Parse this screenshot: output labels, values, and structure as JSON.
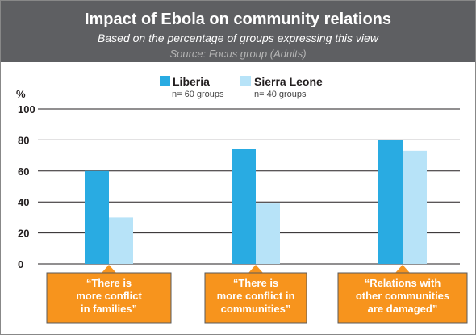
{
  "header": {
    "title": "Impact of Ebola on community relations",
    "subtitle": "Based on the percentage of groups expressing this view",
    "source": "Source: Focus group (Adults)"
  },
  "chart_data": {
    "type": "bar",
    "title": "Impact of Ebola on community relations",
    "subtitle": "Based on the percentage of groups expressing this view",
    "ylabel": "%",
    "xlabel": "",
    "ylim": [
      0,
      100
    ],
    "yticks": [
      0,
      20,
      40,
      60,
      80,
      100
    ],
    "grid": true,
    "legend_position": "top-center",
    "categories": [
      [
        "“There is",
        "more conflict",
        "in families”"
      ],
      [
        "“There is",
        "more conflict in",
        "communities”"
      ],
      [
        "“Relations with",
        "other communities",
        "are damaged”"
      ]
    ],
    "series": [
      {
        "name": "Liberia",
        "note": "n= 60 groups",
        "values": [
          60,
          74,
          80
        ],
        "color": "#29abe2"
      },
      {
        "name": "Sierra Leone",
        "note": "n= 40 groups",
        "values": [
          30,
          39,
          73
        ],
        "color": "#b7e3f8"
      }
    ]
  },
  "colors": {
    "header_bg": "#5e5f62",
    "source_text": "#b5b5b5",
    "label_box": "#f7941d",
    "label_border": "#5a5a5a"
  }
}
